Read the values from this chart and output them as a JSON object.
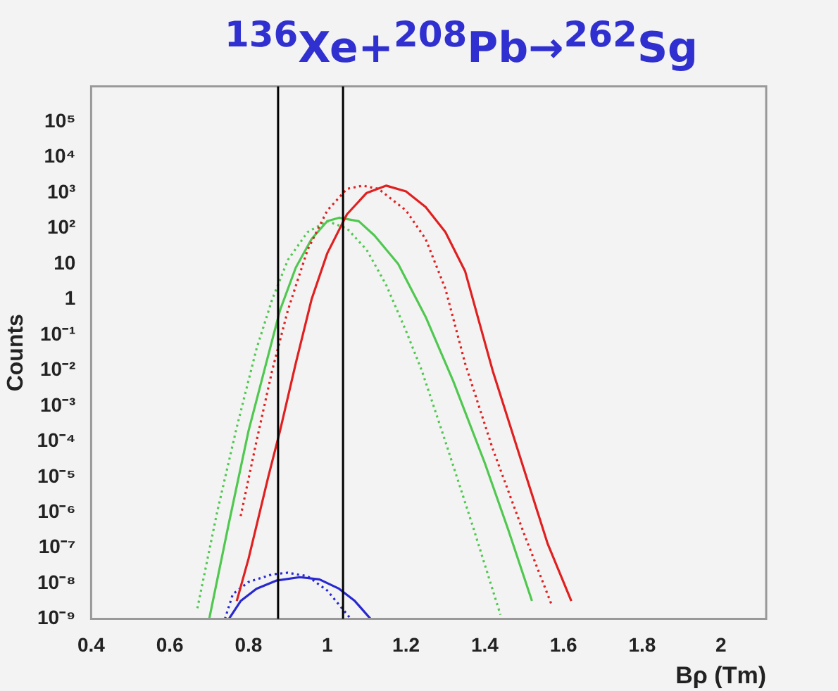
{
  "chart_data": {
    "type": "line",
    "title": "$^{136}$Xe+$^{208}$Pb→$^{262}$Sg",
    "xlabel": "Bρ (Tm)",
    "ylabel": "Counts",
    "log": "y",
    "grid": false,
    "legend": false,
    "marker": "none",
    "xlim": [
      0.4,
      2.115
    ],
    "xticks": [
      0.4,
      0.6,
      0.8,
      1,
      1.2,
      1.4,
      1.6,
      1.8,
      2
    ],
    "ylim": [
      1e-09,
      1000000.0
    ],
    "yticks": [
      {
        "value": 1e-09,
        "label": "10⁻⁹"
      },
      {
        "value": 1e-08,
        "label": "10⁻⁸"
      },
      {
        "value": 1e-07,
        "label": "10⁻⁷"
      },
      {
        "value": 1e-06,
        "label": "10⁻⁶"
      },
      {
        "value": 1e-05,
        "label": "10⁻⁵"
      },
      {
        "value": 0.0001,
        "label": "10⁻⁴"
      },
      {
        "value": 0.001,
        "label": "10⁻³"
      },
      {
        "value": 0.01,
        "label": "10⁻²"
      },
      {
        "value": 0.1,
        "label": "10⁻¹"
      },
      1,
      10,
      {
        "value": 100,
        "label": "10²"
      },
      {
        "value": 1000,
        "label": "10³"
      },
      {
        "value": 10000,
        "label": "10⁴"
      },
      {
        "value": 100000,
        "label": "10⁵"
      }
    ],
    "ref_lines": [
      {
        "axis": "x",
        "value": 0.875,
        "color": "#000000"
      },
      {
        "axis": "x",
        "value": 1.04,
        "color": "#000000"
      }
    ],
    "series": [
      {
        "color": "#e02020",
        "line_style": "solid",
        "x": [
          0.77,
          0.8,
          0.85,
          0.88,
          0.92,
          0.96,
          1.0,
          1.05,
          1.1,
          1.15,
          1.2,
          1.25,
          1.3,
          1.35,
          1.42,
          1.5,
          1.56,
          1.62
        ],
        "values": [
          3.2e-09,
          5e-08,
          1e-05,
          0.0002,
          0.016,
          1,
          20,
          250,
          1000,
          1600,
          1100,
          400,
          79,
          6.3,
          0.01,
          1.6e-05,
          1.3e-07,
          3.2e-09
        ]
      },
      {
        "color": "#e02020",
        "line_style": "dotted",
        "x": [
          0.78,
          0.82,
          0.86,
          0.9,
          0.95,
          1.0,
          1.05,
          1.09,
          1.13,
          1.2,
          1.25,
          1.3,
          1.35,
          1.42,
          1.5,
          1.57
        ],
        "values": [
          7.9e-07,
          0.0001,
          0.01,
          0.5,
          25,
          320,
          1300,
          1600,
          1300,
          320,
          50,
          2,
          0.016,
          6.3e-05,
          2.5e-07,
          2.5e-09
        ]
      },
      {
        "color": "#50c850",
        "line_style": "solid",
        "x": [
          0.7,
          0.75,
          0.8,
          0.84,
          0.88,
          0.92,
          0.96,
          1.0,
          1.03,
          1.08,
          1.12,
          1.18,
          1.25,
          1.32,
          1.4,
          1.46,
          1.52
        ],
        "values": [
          1e-09,
          5e-07,
          0.0002,
          0.01,
          0.5,
          7.9,
          50,
          160,
          200,
          160,
          63,
          10,
          0.32,
          0.005,
          2.5e-05,
          3.2e-07,
          3.2e-09
        ]
      },
      {
        "color": "#50c850",
        "line_style": "dotted",
        "x": [
          0.67,
          0.72,
          0.77,
          0.82,
          0.86,
          0.9,
          0.95,
          1.0,
          1.05,
          1.1,
          1.15,
          1.2,
          1.24,
          1.3,
          1.37,
          1.44
        ],
        "values": [
          2e-09,
          1e-06,
          0.00025,
          0.04,
          1,
          13,
          79,
          160,
          100,
          25,
          2.5,
          0.13,
          0.01,
          0.0001,
          4e-07,
          1.3e-09
        ]
      },
      {
        "color": "#2828d0",
        "line_style": "solid",
        "x": [
          0.75,
          0.78,
          0.82,
          0.87,
          0.93,
          0.98,
          1.03,
          1.07,
          1.11
        ],
        "values": [
          1e-09,
          3.2e-09,
          7.1e-09,
          1.2e-08,
          1.5e-08,
          1.3e-08,
          7.1e-09,
          3.2e-09,
          1e-09
        ]
      },
      {
        "color": "#2828d0",
        "line_style": "dotted",
        "x": [
          0.74,
          0.76,
          0.8,
          0.86,
          0.9,
          0.95,
          1.0,
          1.03,
          1.06
        ],
        "values": [
          1e-09,
          5e-09,
          1.1e-08,
          1.8e-08,
          2e-08,
          1.6e-08,
          6.3e-09,
          2.5e-09,
          1e-09
        ]
      }
    ]
  }
}
